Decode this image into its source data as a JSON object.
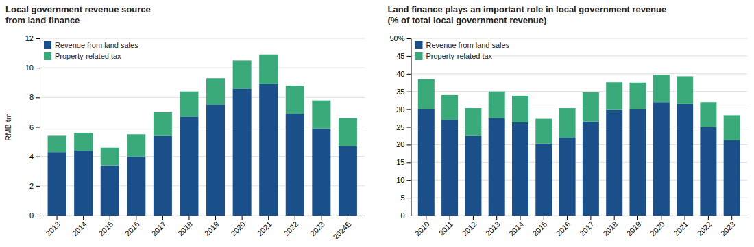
{
  "chart_data": [
    {
      "type": "bar",
      "stacked": true,
      "grid": true,
      "legend": "upper-left",
      "title": "Local government revenue source\nfrom land finance",
      "ylabel": "RMB trn",
      "categories": [
        "2013",
        "2014",
        "2015",
        "2016",
        "2017",
        "2018",
        "2019",
        "2020",
        "2021",
        "2022",
        "2023",
        "2024E"
      ],
      "series": [
        {
          "name": "Revenue from land sales",
          "color": "#1a4f8a",
          "values": [
            4.3,
            4.4,
            3.4,
            4.0,
            5.4,
            6.7,
            7.5,
            8.6,
            8.9,
            6.9,
            5.9,
            4.7
          ]
        },
        {
          "name": "Property-related tax",
          "color": "#3aaa7a",
          "values": [
            1.1,
            1.2,
            1.2,
            1.5,
            1.6,
            1.7,
            1.8,
            1.9,
            2.0,
            1.9,
            1.9,
            1.9
          ]
        }
      ],
      "ylim": [
        0,
        12
      ],
      "yticks": [
        0,
        2,
        4,
        6,
        8,
        10,
        12
      ]
    },
    {
      "type": "bar",
      "stacked": true,
      "grid": true,
      "legend": "upper-left",
      "title": "Land finance plays an important role in local government revenue\n(% of total local government revenue)",
      "categories": [
        "2010",
        "2011",
        "2012",
        "2013",
        "2014",
        "2015",
        "2016",
        "2017",
        "2018",
        "2019",
        "2020",
        "2021",
        "2022",
        "2023"
      ],
      "series": [
        {
          "name": "Revenue from land sales",
          "color": "#1a4f8a",
          "values": [
            30.0,
            27.0,
            22.5,
            27.5,
            26.3,
            20.3,
            22.0,
            26.5,
            29.8,
            30.0,
            32.0,
            31.5,
            25.0,
            21.3
          ]
        },
        {
          "name": "Property-related tax",
          "color": "#3aaa7a",
          "values": [
            8.5,
            7.0,
            7.8,
            7.5,
            7.5,
            7.0,
            8.3,
            8.3,
            7.8,
            7.5,
            7.7,
            7.8,
            7.0,
            7.0
          ]
        }
      ],
      "ylim": [
        0,
        50
      ],
      "yticks": [
        0,
        5,
        10,
        15,
        20,
        25,
        30,
        35,
        40,
        45,
        {
          "value": 50,
          "label": "50%"
        }
      ]
    }
  ]
}
